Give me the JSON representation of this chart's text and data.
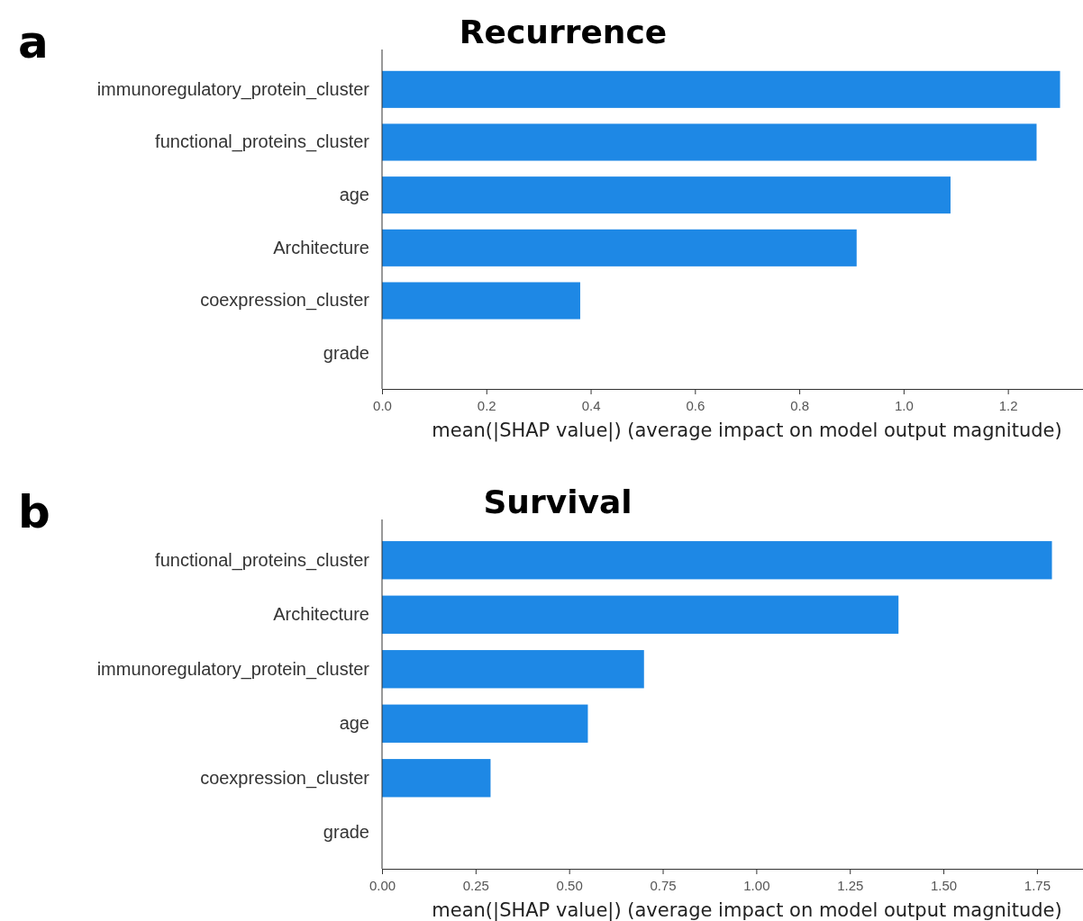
{
  "chart_data": [
    {
      "type": "bar",
      "orientation": "horizontal",
      "title": "Recurrence",
      "xlabel": "mean(|SHAP value|) (average impact on model output magnitude)",
      "annotations": [
        "a"
      ],
      "categories": [
        "immunoregulatory_protein_cluster",
        "functional_proteins_cluster",
        "age",
        "Architecture",
        "coexpression_cluster",
        "grade"
      ],
      "values": [
        1.3,
        1.255,
        1.09,
        0.91,
        0.38,
        0
      ],
      "color": "#1e88e5",
      "xlim": [
        0,
        1.344
      ],
      "xticks": [
        {
          "value": 0,
          "label": "0.0"
        },
        0.2,
        0.4,
        0.6,
        0.8,
        {
          "value": 1,
          "label": "1.0"
        },
        1.2
      ]
    },
    {
      "type": "bar",
      "orientation": "horizontal",
      "title": "Survival",
      "xlabel": "mean(|SHAP value|) (average impact on model output magnitude)",
      "annotations": [
        "b"
      ],
      "categories": [
        "functional_proteins_cluster",
        "Architecture",
        "immunoregulatory_protein_cluster",
        "age",
        "coexpression_cluster",
        "grade"
      ],
      "values": [
        1.79,
        1.38,
        0.7,
        0.55,
        0.29,
        0
      ],
      "color": "#1e88e5",
      "xlim": [
        0,
        1.873
      ],
      "xticks": [
        {
          "value": 0,
          "label": "0.00"
        },
        0.25,
        {
          "value": 0.5,
          "label": "0.50"
        },
        0.75,
        {
          "value": 1,
          "label": "1.00"
        },
        1.25,
        {
          "value": 1.5,
          "label": "1.50"
        },
        1.75
      ]
    }
  ]
}
